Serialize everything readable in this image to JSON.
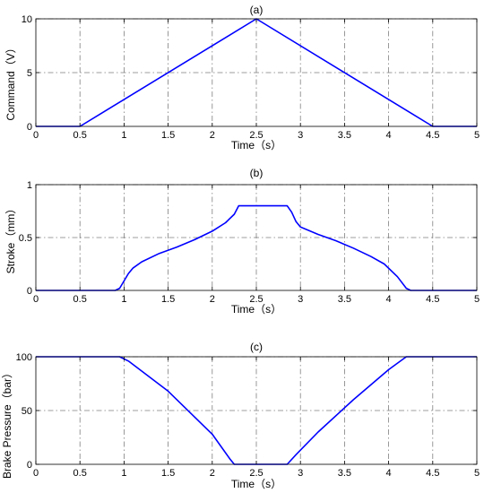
{
  "colors": {
    "line": "#0000ff",
    "grid": "#7f7f7f",
    "axis": "#000000"
  },
  "chart_data": [
    {
      "type": "line",
      "title": "(a)",
      "xlabel": "Time（s）",
      "ylabel": "Command（V）",
      "xlim": [
        0,
        5
      ],
      "ylim": [
        0,
        10
      ],
      "grid": true,
      "x_ticks": [
        "0",
        "0.5",
        "1",
        "1.5",
        "2",
        "2.5",
        "3",
        "3.5",
        "4",
        "4.5",
        "5"
      ],
      "y_ticks": [
        "0",
        "5",
        "10"
      ],
      "series": [
        {
          "x": [
            0,
            0.5,
            2.5,
            4.5,
            5
          ],
          "y": [
            0,
            0,
            10,
            0,
            0
          ]
        }
      ]
    },
    {
      "type": "line",
      "title": "(b)",
      "xlabel": "Time（s）",
      "ylabel": "Stroke（mm）",
      "xlim": [
        0,
        5
      ],
      "ylim": [
        0,
        1
      ],
      "grid": true,
      "x_ticks": [
        "0",
        "0.5",
        "1",
        "1.5",
        "2",
        "2.5",
        "3",
        "3.5",
        "4",
        "4.5",
        "5"
      ],
      "y_ticks": [
        "0",
        "0.5",
        "1"
      ],
      "series": [
        {
          "x": [
            0,
            0.9,
            0.95,
            1.0,
            1.05,
            1.1,
            1.2,
            1.4,
            1.6,
            1.8,
            2.0,
            2.15,
            2.25,
            2.3,
            2.85,
            2.9,
            2.95,
            3.0,
            3.2,
            3.4,
            3.6,
            3.8,
            3.95,
            4.1,
            4.2,
            4.25,
            5.0
          ],
          "y": [
            0,
            0,
            0.02,
            0.09,
            0.16,
            0.21,
            0.27,
            0.35,
            0.41,
            0.48,
            0.56,
            0.64,
            0.72,
            0.8,
            0.8,
            0.74,
            0.65,
            0.6,
            0.53,
            0.47,
            0.4,
            0.32,
            0.25,
            0.13,
            0.02,
            0.0,
            0.0
          ]
        }
      ]
    },
    {
      "type": "line",
      "title": "(c)",
      "xlabel": "Time（s）",
      "ylabel": "Brake Pressure（bar）",
      "xlim": [
        0,
        5
      ],
      "ylim": [
        0,
        100
      ],
      "grid": true,
      "x_ticks": [
        "0",
        "0.5",
        "1",
        "1.5",
        "2",
        "2.5",
        "3",
        "3.5",
        "4",
        "4.5",
        "5"
      ],
      "y_ticks": [
        "0",
        "50",
        "100"
      ],
      "series": [
        {
          "x": [
            0,
            0.95,
            1.05,
            1.5,
            2.0,
            2.2,
            2.25,
            2.85,
            2.95,
            3.2,
            3.6,
            4.0,
            4.2,
            5.0
          ],
          "y": [
            100,
            100,
            96,
            68,
            28,
            5,
            0,
            0,
            9,
            30,
            60,
            88,
            100,
            100
          ]
        }
      ]
    }
  ]
}
